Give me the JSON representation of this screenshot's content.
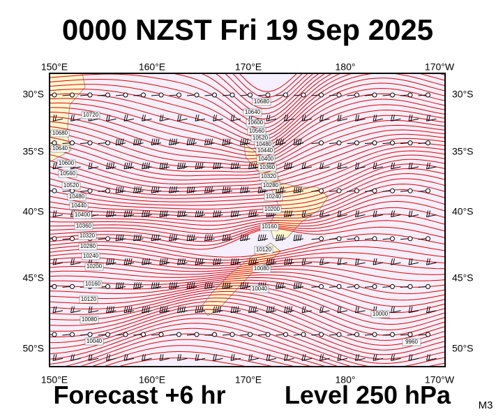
{
  "header": {
    "title": "0000 NZST Fri 19 Sep 2025"
  },
  "map": {
    "lon_labels": [
      "150°E",
      "160°E",
      "170°E",
      "180°",
      "170°W"
    ],
    "lat_labels": [
      "30°S",
      "35°S",
      "40°S",
      "45°S",
      "50°S"
    ],
    "contour_labels": [
      "10720",
      "10680",
      "10640",
      "10600",
      "10560",
      "10520",
      "10480",
      "10440",
      "10400",
      "10360",
      "10320",
      "10280",
      "10240",
      "10200",
      "10160",
      "10120",
      "10080",
      "10040",
      "10680",
      "10640",
      "10600",
      "10560",
      "10520",
      "10480",
      "10440",
      "10400",
      "10360",
      "10320",
      "10280",
      "10240",
      "10200",
      "10160",
      "10120",
      "10080",
      "10040",
      "10000",
      "9960"
    ]
  },
  "footer": {
    "forecast": "Forecast +6 hr",
    "level": "Level 250 hPa",
    "model": "M3"
  }
}
